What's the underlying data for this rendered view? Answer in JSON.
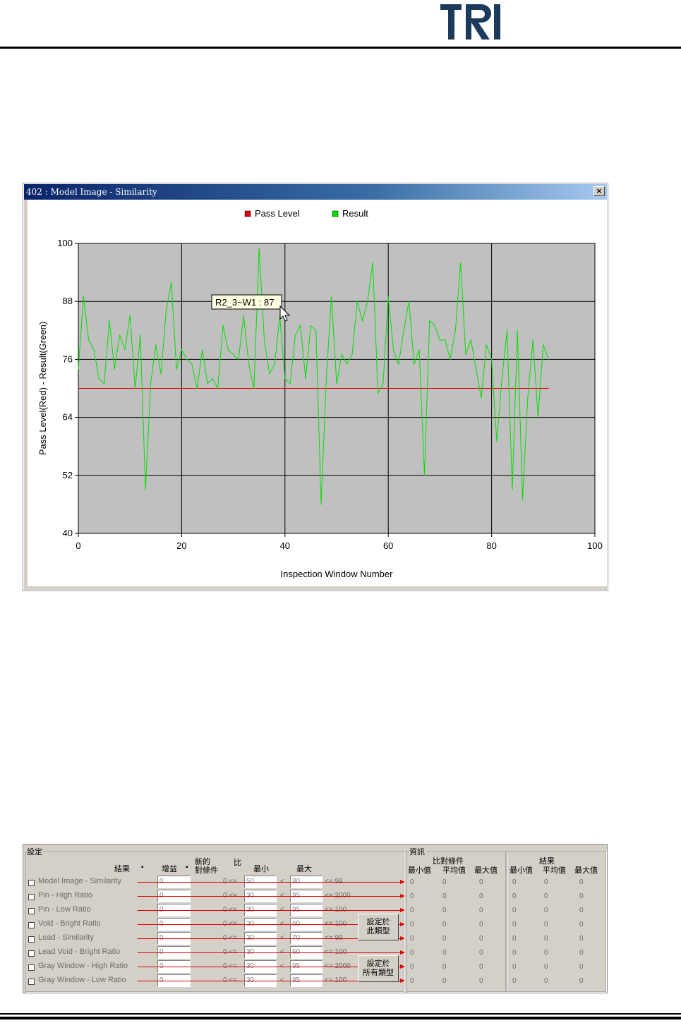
{
  "logo": {
    "text": "TRI"
  },
  "chart_window": {
    "title": "402 : Model Image - Similarity",
    "close_label": "×",
    "tooltip": "R2_3~W1 : 87"
  },
  "chart_data": {
    "type": "line",
    "xlabel": "Inspection Window Number",
    "ylabel": "Pass Level(Red) - Result(Green)",
    "xlim": [
      0,
      100
    ],
    "ylim": [
      40,
      100
    ],
    "x_ticks": [
      "0",
      "20",
      "40",
      "60",
      "80",
      "100"
    ],
    "y_ticks": [
      "40",
      "52",
      "64",
      "76",
      "88",
      "100"
    ],
    "grid": true,
    "legend_position": "top-center",
    "series": [
      {
        "name": "Pass Level",
        "color": "#dd0000",
        "x": [
          0,
          91
        ],
        "y": [
          70,
          70
        ]
      },
      {
        "name": "Result",
        "color": "#00e000",
        "x": [
          0,
          1,
          2,
          3,
          4,
          5,
          6,
          7,
          8,
          9,
          10,
          11,
          12,
          13,
          14,
          15,
          16,
          17,
          18,
          19,
          20,
          21,
          22,
          23,
          24,
          25,
          26,
          27,
          28,
          29,
          30,
          31,
          32,
          33,
          34,
          35,
          36,
          37,
          38,
          39,
          40,
          41,
          42,
          43,
          44,
          45,
          46,
          47,
          48,
          49,
          50,
          51,
          52,
          53,
          54,
          55,
          56,
          57,
          58,
          59,
          60,
          61,
          62,
          63,
          64,
          65,
          66,
          67,
          68,
          69,
          70,
          71,
          72,
          73,
          74,
          75,
          76,
          77,
          78,
          79,
          80,
          81,
          82,
          83,
          84,
          85,
          86,
          87,
          88,
          89,
          90,
          91
        ],
        "y": [
          74,
          89,
          80,
          78,
          72,
          71,
          84,
          74,
          81,
          78,
          85,
          70,
          81,
          49,
          71,
          79,
          73,
          86,
          92,
          74,
          78,
          76,
          75,
          70,
          78,
          71,
          72,
          70,
          83,
          78,
          77,
          76,
          85,
          75,
          70,
          99,
          80,
          73,
          75,
          85,
          72,
          71,
          81,
          83,
          72,
          83,
          82,
          46,
          72,
          89,
          71,
          77,
          75,
          77,
          88,
          84,
          88,
          96,
          69,
          71,
          89,
          78,
          75,
          82,
          88,
          75,
          78,
          52,
          84,
          83,
          80,
          80,
          76,
          82,
          96,
          77,
          80,
          74,
          68,
          79,
          76,
          59,
          72,
          82,
          49,
          82,
          47,
          68,
          80,
          64,
          79,
          76
        ]
      }
    ]
  },
  "settings_panel": {
    "title": "設定",
    "header_result": "結果",
    "header_gain": "增益",
    "header_new_cond_1": "新的",
    "header_new_cond_2": "對條件",
    "header_ratio": "比",
    "header_min": "最小",
    "header_max": "最大",
    "info_title": "資訊",
    "info_compare": "比對條件",
    "info_result": "結果",
    "col_min": "最小值",
    "col_avg": "平均值",
    "col_max": "最大值",
    "bound_lower": "0 <=",
    "lt": "<",
    "button_this_type": [
      "設定於",
      "此類型"
    ],
    "button_all_types": [
      "設定於",
      "所有類型"
    ],
    "rows": [
      {
        "label": "Model Image - Similarity",
        "gain": "0",
        "min": "50",
        "max": "80",
        "upper": "<= 99",
        "stats": [
          "0",
          "0",
          "0",
          "0",
          "0",
          "0"
        ]
      },
      {
        "label": "Pin - High Ratio",
        "gain": "0",
        "min": "30",
        "max": "95",
        "upper": "<= 2000",
        "stats": [
          "0",
          "0",
          "0",
          "0",
          "0",
          "0"
        ]
      },
      {
        "label": "Pin - Low Ratio",
        "gain": "0",
        "min": "30",
        "max": "95",
        "upper": "<= 100",
        "stats": [
          "0",
          "0",
          "0",
          "0",
          "0",
          "0"
        ]
      },
      {
        "label": "Void - Bright Ratio",
        "gain": "0",
        "min": "30",
        "max": "60",
        "upper": "<= 100",
        "stats": [
          "0",
          "0",
          "0",
          "0",
          "0",
          "0"
        ]
      },
      {
        "label": "Lead - Similarity",
        "gain": "0",
        "min": "30",
        "max": "70",
        "upper": "<= 99",
        "stats": [
          "0",
          "0",
          "0",
          "0",
          "0",
          "0"
        ]
      },
      {
        "label": "Lead Void - Bright Ratio",
        "gain": "0",
        "min": "30",
        "max": "60",
        "upper": "<= 100",
        "stats": [
          "0",
          "0",
          "0",
          "0",
          "0",
          "0"
        ]
      },
      {
        "label": "Gray Window - High Ratio",
        "gain": "0",
        "min": "30",
        "max": "95",
        "upper": "<= 2000",
        "stats": [
          "0",
          "0",
          "0",
          "0",
          "0",
          "0"
        ]
      },
      {
        "label": "Gray Window - Low Ratio",
        "gain": "0",
        "min": "30",
        "max": "95",
        "upper": "<= 100",
        "stats": [
          "0",
          "0",
          "0",
          "0",
          "0",
          "0"
        ]
      }
    ]
  }
}
